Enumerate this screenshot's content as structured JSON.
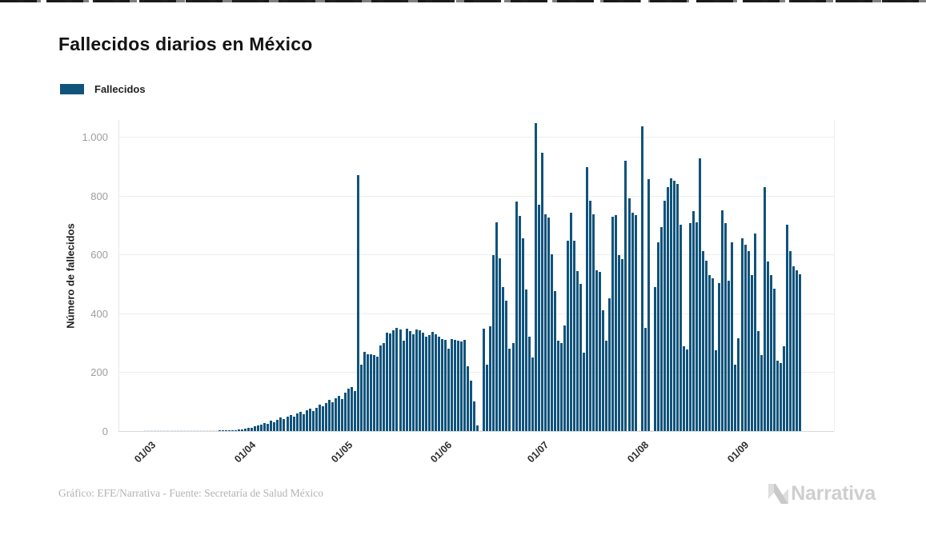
{
  "title": "Fallecidos diarios en México",
  "legend": {
    "label": "Fallecidos",
    "swatch_color": "#10537b"
  },
  "footer": {
    "credit": "Gráfico: EFE/Narrativa - Fuente: Secretaría de Salud México",
    "brand": "Narrativa"
  },
  "chart_data": {
    "type": "bar",
    "title": "Fallecidos diarios en México",
    "series_name": "Fallecidos",
    "xlabel": "",
    "ylabel": "Número de fallecidos",
    "ylim": [
      0,
      1062
    ],
    "grid": true,
    "legend_position": "top-left",
    "bar_color": "#10537b",
    "zero_bar_color": "#d7e3ec",
    "x_unit": "day",
    "yticks": [
      {
        "value": 0,
        "label": "0"
      },
      {
        "value": 200,
        "label": "200"
      },
      {
        "value": 400,
        "label": "400"
      },
      {
        "value": 600,
        "label": "600"
      },
      {
        "value": 800,
        "label": "800"
      },
      {
        "value": 1000,
        "label": "1.000"
      }
    ],
    "xticks": [
      {
        "index": 13,
        "label": "01/03"
      },
      {
        "index": 44,
        "label": "01/04"
      },
      {
        "index": 74,
        "label": "01/05"
      },
      {
        "index": 105,
        "label": "01/06"
      },
      {
        "index": 135,
        "label": "01/07"
      },
      {
        "index": 166,
        "label": "01/08"
      },
      {
        "index": 197,
        "label": "01/09"
      }
    ],
    "values": [
      null,
      null,
      null,
      null,
      null,
      null,
      null,
      null,
      0,
      0,
      0,
      0,
      0,
      0,
      0,
      0,
      0,
      0,
      0,
      0,
      0,
      0,
      0,
      0,
      0,
      0,
      0,
      0,
      0,
      0,
      0,
      1,
      1,
      2,
      2,
      3,
      4,
      5,
      6,
      8,
      10,
      12,
      16,
      20,
      22,
      28,
      25,
      35,
      30,
      38,
      45,
      42,
      50,
      55,
      48,
      60,
      65,
      58,
      70,
      75,
      68,
      80,
      90,
      85,
      95,
      105,
      98,
      112,
      120,
      108,
      130,
      145,
      150,
      135,
      870,
      225,
      270,
      262,
      260,
      258,
      253,
      290,
      300,
      335,
      332,
      343,
      350,
      345,
      307,
      348,
      340,
      330,
      345,
      342,
      335,
      320,
      325,
      338,
      330,
      320,
      312,
      310,
      280,
      312,
      310,
      308,
      305,
      310,
      220,
      170,
      100,
      20,
      0,
      348,
      225,
      355,
      597,
      710,
      587,
      488,
      443,
      280,
      300,
      780,
      730,
      655,
      480,
      320,
      250,
      1045,
      770,
      945,
      737,
      725,
      601,
      475,
      307,
      300,
      360,
      647,
      742,
      647,
      544,
      500,
      266,
      896,
      782,
      737,
      546,
      540,
      411,
      307,
      450,
      728,
      734,
      597,
      583,
      918,
      790,
      742,
      735,
      0,
      1036,
      350,
      855,
      0,
      490,
      640,
      693,
      783,
      829,
      859,
      851,
      840,
      700,
      288,
      276,
      706,
      747,
      708,
      927,
      611,
      579,
      530,
      518,
      274,
      503,
      750,
      706,
      511,
      642,
      226,
      316,
      656,
      634,
      611,
      530,
      670,
      340,
      258,
      829,
      575,
      530,
      483,
      240,
      232,
      288,
      700,
      611,
      560,
      545,
      533
    ]
  }
}
